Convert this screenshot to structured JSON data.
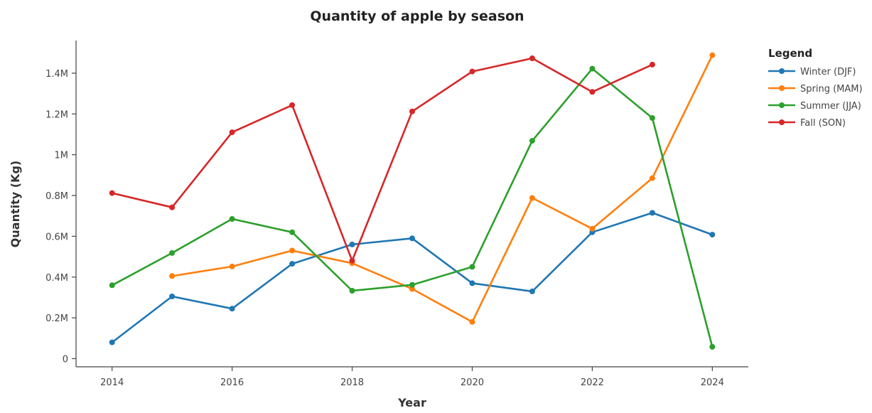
{
  "chart_data": {
    "type": "line",
    "title": "Quantity of apple by season",
    "xlabel": "Year",
    "ylabel": "Quantity (Kg)",
    "x": [
      2014,
      2015,
      2016,
      2017,
      2018,
      2019,
      2020,
      2021,
      2022,
      2023,
      2024
    ],
    "xlim": [
      2013.4,
      2024.6
    ],
    "ylim": [
      -40000,
      1560000
    ],
    "x_ticks": [
      2014,
      2016,
      2018,
      2020,
      2022,
      2024
    ],
    "x_tick_labels": [
      "2014",
      "2016",
      "2018",
      "2020",
      "2022",
      "2024"
    ],
    "y_ticks": [
      0,
      200000,
      400000,
      600000,
      800000,
      1000000,
      1200000,
      1400000
    ],
    "y_tick_labels": [
      "0",
      "0.2M",
      "0.4M",
      "0.6M",
      "0.8M",
      "1M",
      "1.2M",
      "1.4M"
    ],
    "grid": false,
    "legend": {
      "title": "Legend",
      "position": "top-right"
    },
    "series": [
      {
        "name": "Winter (DJF)",
        "color": "#1f77b4",
        "values": [
          80000,
          305000,
          245000,
          465000,
          560000,
          590000,
          370000,
          330000,
          620000,
          715000,
          608000
        ]
      },
      {
        "name": "Spring (MAM)",
        "color": "#ff7f0e",
        "values": [
          null,
          405000,
          452000,
          530000,
          468000,
          342000,
          180000,
          788000,
          637000,
          885000,
          1488000
        ]
      },
      {
        "name": "Summer (JJA)",
        "color": "#2ca02c",
        "values": [
          360000,
          518000,
          685000,
          620000,
          333000,
          362000,
          450000,
          1068000,
          1422000,
          1180000,
          58000
        ]
      },
      {
        "name": "Fall (SON)",
        "color": "#d62728",
        "values": [
          812000,
          742000,
          1110000,
          1243000,
          480000,
          1212000,
          1408000,
          1473000,
          1308000,
          1442000,
          null
        ]
      }
    ]
  }
}
